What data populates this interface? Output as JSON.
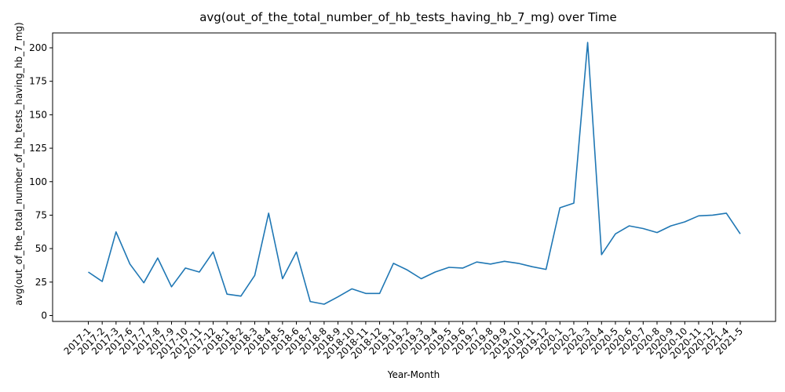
{
  "chart_data": {
    "type": "line",
    "title": "avg(out_of_the_total_number_of_hb_tests_having_hb_7_mg) over Time",
    "xlabel": "Year-Month",
    "ylabel": "avg(out_of_the_total_number_of_hb_tests_having_hb_7_mg)",
    "ylim": [
      0,
      212
    ],
    "yticks": [
      0,
      25,
      50,
      75,
      100,
      125,
      150,
      175,
      200
    ],
    "grid": false,
    "legend": false,
    "color": "#1f77b4",
    "x": [
      "2017-1",
      "2017-2",
      "2017-3",
      "2017-6",
      "2017-7",
      "2017-8",
      "2017-9",
      "2017-10",
      "2017-11",
      "2017-12",
      "2018-1",
      "2018-2",
      "2018-3",
      "2018-4",
      "2018-5",
      "2018-6",
      "2018-7",
      "2018-8",
      "2018-9",
      "2018-10",
      "2018-11",
      "2018-12",
      "2019-1",
      "2019-2",
      "2019-3",
      "2019-4",
      "2019-5",
      "2019-6",
      "2019-7",
      "2019-8",
      "2019-9",
      "2019-10",
      "2019-11",
      "2019-12",
      "2020-1",
      "2020-2",
      "2020-3",
      "2020-4",
      "2020-5",
      "2020-6",
      "2020-7",
      "2020-8",
      "2020-9",
      "2020-10",
      "2020-11",
      "2020-12",
      "2021-4",
      "2021-5"
    ],
    "series": [
      {
        "values": [
          32.5,
          25.5,
          62.5,
          38.5,
          24.5,
          43.0,
          21.5,
          35.5,
          32.5,
          47.5,
          16.0,
          14.5,
          30.0,
          76.5,
          27.5,
          47.5,
          10.5,
          8.5,
          14.0,
          20.0,
          16.5,
          16.5,
          39.0,
          34.0,
          27.5,
          32.5,
          36.0,
          35.5,
          40.0,
          38.5,
          40.5,
          39.0,
          36.5,
          34.5,
          80.5,
          84.0,
          204.0,
          45.5,
          61.0,
          67.0,
          65.0,
          62.0,
          67.0,
          70.0,
          74.5,
          75.0,
          76.5,
          61.0
        ]
      }
    ]
  }
}
